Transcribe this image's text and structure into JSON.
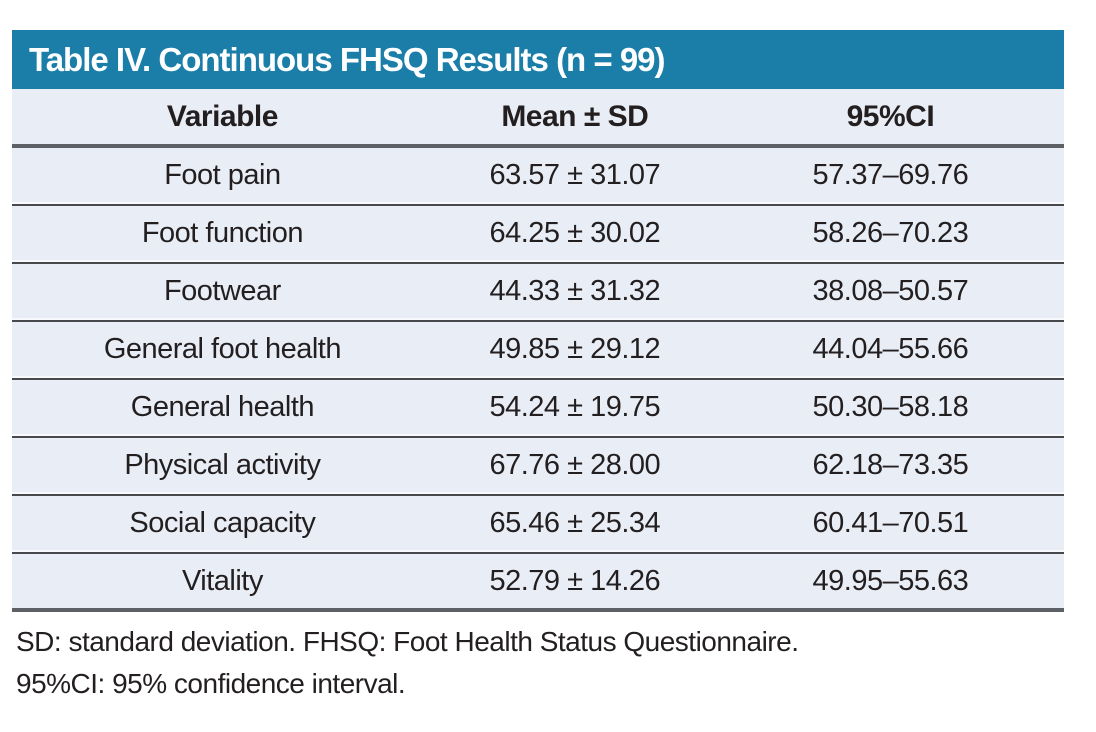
{
  "table": {
    "title": "Table IV. Continuous FHSQ Results (n = 99)",
    "columns": [
      "Variable",
      "Mean ± SD",
      "95%CI"
    ],
    "rows": [
      {
        "variable": "Foot pain",
        "mean_sd": "63.57 ± 31.07",
        "ci": "57.37–69.76"
      },
      {
        "variable": "Foot function",
        "mean_sd": "64.25 ± 30.02",
        "ci": "58.26–70.23"
      },
      {
        "variable": "Footwear",
        "mean_sd": "44.33 ± 31.32",
        "ci": "38.08–50.57"
      },
      {
        "variable": "General foot health",
        "mean_sd": "49.85 ± 29.12",
        "ci": "44.04–55.66"
      },
      {
        "variable": "General health",
        "mean_sd": "54.24 ± 19.75",
        "ci": "50.30–58.18"
      },
      {
        "variable": "Physical activity",
        "mean_sd": "67.76 ± 28.00",
        "ci": "62.18–73.35"
      },
      {
        "variable": "Social capacity",
        "mean_sd": "65.46 ± 25.34",
        "ci": "60.41–70.51"
      },
      {
        "variable": "Vitality",
        "mean_sd": "52.79 ± 14.26",
        "ci": "49.95–55.63"
      }
    ],
    "footnotes": [
      "SD: standard deviation. FHSQ: Foot Health Status Questionnaire.",
      "95%CI: 95% confidence interval."
    ]
  },
  "colors": {
    "accent": "#1b7ea9",
    "row_bg": "#e9eef6",
    "rule_gray": "#5d6065",
    "sep_dark": "#47494d",
    "text": "#231f20",
    "page_bg": "#ffffff"
  }
}
